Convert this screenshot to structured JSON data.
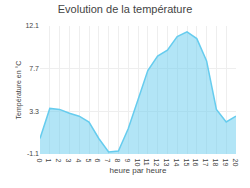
{
  "chart_data": {
    "type": "area",
    "title": "Evolution de la température",
    "xlabel": "heure par heure",
    "ylabel": "Température en °C",
    "x": [
      0,
      1,
      2,
      3,
      4,
      5,
      6,
      7,
      8,
      9,
      10,
      11,
      12,
      13,
      14,
      15,
      16,
      17,
      18,
      19,
      20
    ],
    "values": [
      0.5,
      3.6,
      3.5,
      3.1,
      2.8,
      2.2,
      0.5,
      -0.9,
      -0.8,
      1.5,
      4.5,
      7.5,
      9.0,
      9.6,
      11.0,
      11.5,
      10.8,
      8.5,
      3.5,
      2.2,
      2.8
    ],
    "color": "#66ccee",
    "xlim": [
      0,
      20
    ],
    "xticks": [
      0,
      1,
      2,
      3,
      4,
      5,
      6,
      7,
      8,
      9,
      10,
      11,
      12,
      13,
      14,
      15,
      16,
      17,
      18,
      19,
      20
    ],
    "ylim": [
      -1.1,
      12.1
    ],
    "yticks": [
      -1.1,
      3.3,
      7.7,
      12.1
    ],
    "grid": true
  }
}
